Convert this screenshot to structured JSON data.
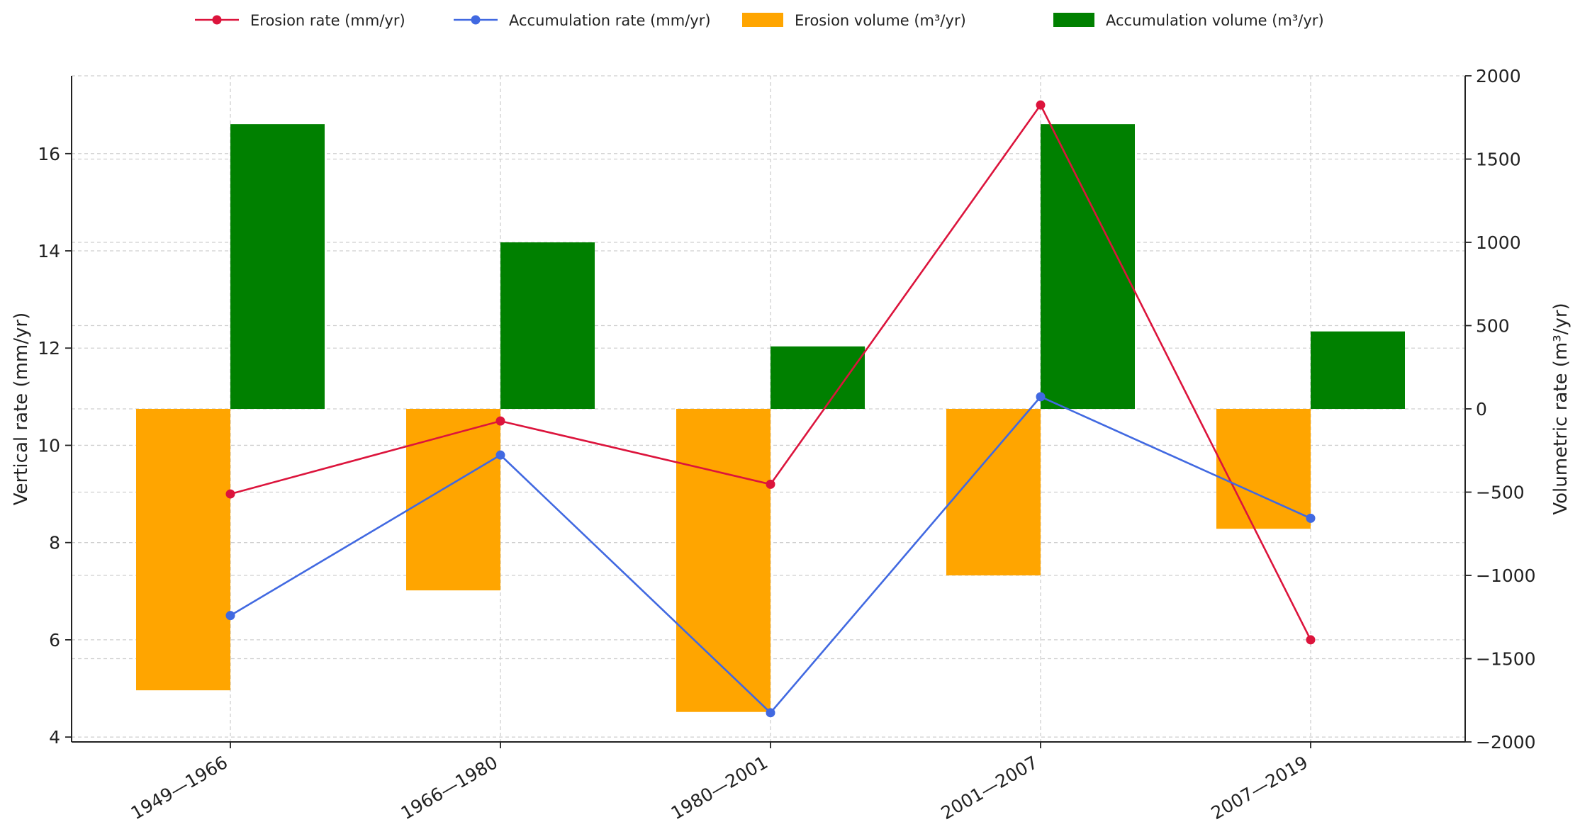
{
  "chart_data": {
    "type": "bar+line",
    "categories": [
      "1949—1966",
      "1966—1980",
      "1980—2001",
      "2001—2007",
      "2007—2019"
    ],
    "line_series": [
      {
        "name": "Erosion rate (mm/yr)",
        "color": "#dc143c",
        "axis": "left",
        "values": [
          9.0,
          10.5,
          9.2,
          17.0,
          6.0
        ]
      },
      {
        "name": "Accumulation rate (mm/yr)",
        "color": "#4169e1",
        "axis": "left",
        "values": [
          6.5,
          9.8,
          4.5,
          11.0,
          8.5
        ]
      }
    ],
    "bar_series": [
      {
        "name": "Erosion volume (m³/yr)",
        "color": "#ffa500",
        "axis": "right",
        "values": [
          -1690,
          -1090,
          -1820,
          -1000,
          -720
        ]
      },
      {
        "name": "Accumulation volume (m³/yr)",
        "color": "#008000",
        "axis": "right",
        "values": [
          1710,
          1000,
          375,
          1710,
          465
        ]
      }
    ],
    "left_axis": {
      "label": "Vertical rate (mm/yr)",
      "range": [
        3.9,
        17.6
      ],
      "ticks": [
        4,
        6,
        8,
        10,
        12,
        14,
        16
      ]
    },
    "right_axis": {
      "label": "Volumetric rate (m³/yr)",
      "range": [
        -2000,
        2000
      ],
      "ticks": [
        -2000,
        -1500,
        -1000,
        -500,
        0,
        500,
        1000,
        1500,
        2000
      ],
      "tick_labels": [
        "−2000",
        "−1500",
        "−1000",
        "−500",
        "0",
        "500",
        "1000",
        "1500",
        "2000"
      ]
    },
    "grid": true,
    "legend_position": "top-center",
    "title": ""
  }
}
